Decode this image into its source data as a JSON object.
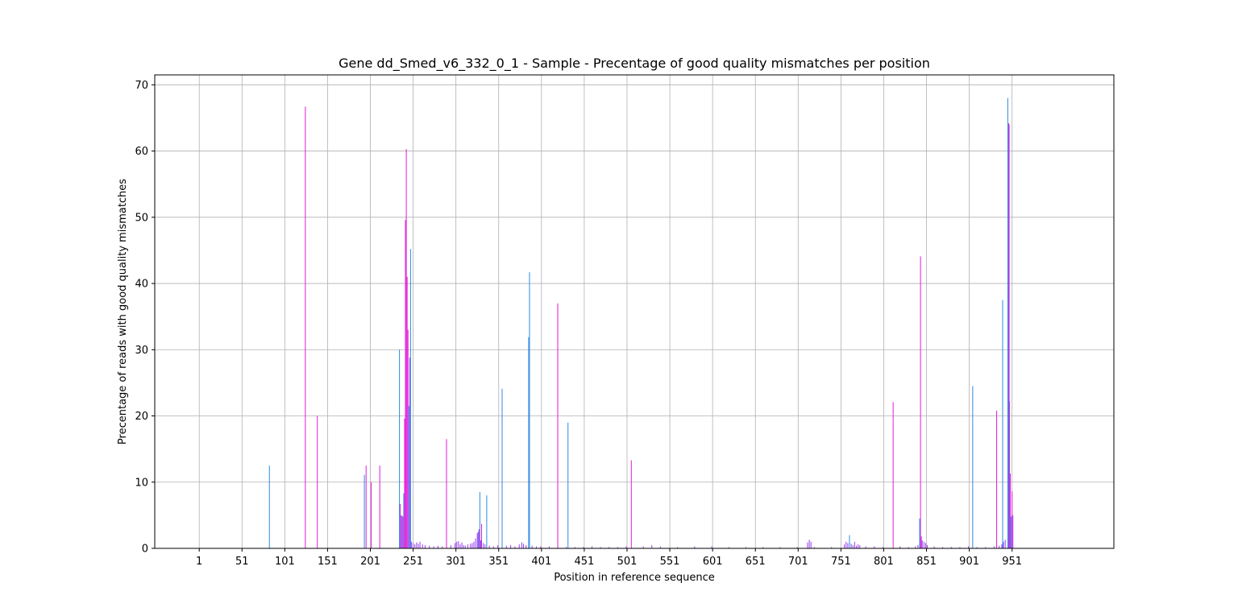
{
  "chart_data": {
    "type": "bar",
    "title": "Gene dd_Smed_v6_332_0_1 - Sample - Precentage of good quality mismatches per position",
    "xlabel": "Position in reference sequence",
    "ylabel": "Precentage of reads with good quality mismatches",
    "xlim": [
      -51,
      1070
    ],
    "ylim": [
      0,
      71.5
    ],
    "x_ticks": [
      1,
      51,
      101,
      151,
      201,
      251,
      301,
      351,
      401,
      451,
      501,
      551,
      601,
      651,
      701,
      751,
      801,
      851,
      901,
      951
    ],
    "y_ticks": [
      0,
      10,
      20,
      30,
      40,
      50,
      60,
      70
    ],
    "grid": true,
    "colors": {
      "magenta": "#e21ddb",
      "blue": "#2e8be6",
      "violet": "#9a3ff0",
      "grid": "#b0b0b0",
      "axis": "#000000"
    },
    "series": [
      {
        "color_key": "magenta",
        "x": [
          125,
          139,
          196,
          202,
          212,
          236,
          239,
          241,
          242,
          243,
          244,
          245,
          290,
          331,
          420,
          506,
          812,
          844,
          845,
          933,
          947,
          949,
          951
        ],
        "values": [
          66.7,
          20.0,
          12.5,
          10.0,
          12.5,
          6.7,
          4.8,
          19.6,
          49.6,
          60.3,
          41.0,
          33.0,
          16.5,
          3.7,
          37.0,
          13.3,
          22.1,
          44.1,
          1.8,
          20.8,
          64.2,
          11.3,
          8.6
        ]
      },
      {
        "color_key": "blue",
        "x": [
          83,
          194,
          235,
          240,
          246,
          248,
          329,
          337,
          355,
          386,
          387,
          432,
          761,
          843,
          905,
          940,
          946,
          948,
          950
        ],
        "values": [
          12.5,
          11.1,
          30.0,
          8.3,
          21.5,
          45.2,
          8.5,
          8.0,
          24.1,
          31.9,
          41.7,
          19.0,
          2.0,
          4.5,
          24.5,
          37.5,
          68.0,
          22.2,
          4.8
        ]
      },
      {
        "color_key": "violet",
        "x": [
          237,
          238,
          247,
          249,
          251,
          253,
          255,
          257,
          259,
          262,
          265,
          270,
          275,
          280,
          285,
          295,
          300,
          302,
          304,
          306,
          308,
          310,
          312,
          315,
          318,
          320,
          322,
          324,
          326,
          327,
          328,
          330,
          333,
          335,
          340,
          345,
          350,
          360,
          365,
          370,
          375,
          378,
          380,
          383,
          390,
          395,
          400,
          410,
          430,
          440,
          450,
          460,
          470,
          480,
          490,
          500,
          520,
          530,
          540,
          560,
          580,
          600,
          620,
          640,
          660,
          680,
          700,
          712,
          714,
          716,
          720,
          740,
          755,
          757,
          759,
          763,
          765,
          767,
          769,
          771,
          773,
          780,
          790,
          800,
          820,
          830,
          838,
          841,
          846,
          848,
          850,
          852,
          860,
          870,
          880,
          890,
          900,
          910,
          920,
          930,
          936,
          939,
          941,
          943,
          947.6,
          952
        ],
        "values": [
          5.0,
          4.9,
          28.8,
          1.0,
          0.8,
          0.6,
          0.9,
          0.7,
          1.0,
          0.6,
          0.5,
          0.4,
          0.3,
          0.4,
          0.3,
          0.5,
          0.8,
          1.0,
          1.1,
          0.6,
          0.9,
          0.5,
          0.4,
          0.6,
          0.7,
          0.8,
          1.0,
          1.5,
          2.3,
          2.5,
          2.9,
          1.2,
          0.8,
          0.6,
          0.4,
          0.3,
          0.5,
          0.4,
          0.5,
          0.3,
          0.6,
          0.9,
          0.7,
          0.5,
          0.4,
          0.3,
          0.3,
          0.3,
          0.2,
          0.2,
          0.2,
          0.3,
          0.2,
          0.2,
          0.2,
          0.3,
          0.3,
          0.5,
          0.3,
          0.2,
          0.3,
          0.3,
          0.2,
          0.2,
          0.2,
          0.2,
          0.2,
          0.9,
          1.3,
          1.0,
          0.2,
          0.2,
          0.6,
          1.0,
          0.8,
          0.7,
          0.5,
          1.0,
          0.4,
          0.6,
          0.5,
          0.3,
          0.3,
          0.2,
          0.3,
          0.2,
          0.3,
          0.5,
          1.2,
          1.0,
          0.8,
          0.5,
          0.3,
          0.2,
          0.2,
          0.2,
          0.3,
          0.2,
          0.2,
          0.3,
          0.4,
          0.6,
          1.0,
          1.3,
          64.0,
          5.0
        ]
      }
    ]
  }
}
